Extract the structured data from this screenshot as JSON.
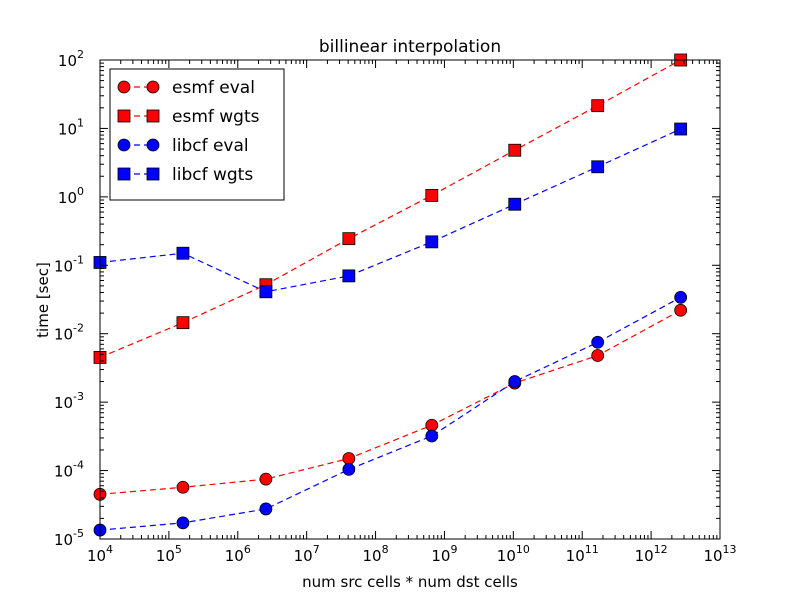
{
  "chart_data": {
    "type": "scatter",
    "title": "billinear interpolation",
    "xlabel": "num src cells * num dst cells",
    "ylabel": "time [sec]",
    "xscale": "log",
    "yscale": "log",
    "xlim": [
      10000,
      10000000000000
    ],
    "ylim": [
      1e-05,
      100
    ],
    "grid": false,
    "legend_position": "upper-left",
    "x_tick_exponents": [
      "4",
      "5",
      "6",
      "7",
      "8",
      "9",
      "10",
      "11",
      "12",
      "13"
    ],
    "y_tick_exponents": [
      "-5",
      "-4",
      "-3",
      "-2",
      "-1",
      "0",
      "1",
      "2"
    ],
    "tick_base": "10",
    "x": [
      10000,
      160000,
      2560000,
      40960000,
      655360000,
      10485760000,
      167772160000,
      2684354560000
    ],
    "series": [
      {
        "name": "esmf eval",
        "color": "#ff0000",
        "marker": "circle",
        "values": [
          4.5e-05,
          5.7e-05,
          7.5e-05,
          0.00015,
          0.00046,
          0.0019,
          0.0048,
          0.022
        ]
      },
      {
        "name": "esmf wgts",
        "color": "#ff0000",
        "marker": "square",
        "values": [
          0.0045,
          0.0145,
          0.052,
          0.245,
          1.05,
          4.8,
          21.5,
          100
        ]
      },
      {
        "name": "libcf eval",
        "color": "#0000ff",
        "marker": "circle",
        "values": [
          1.35e-05,
          1.72e-05,
          2.75e-05,
          0.000104,
          0.00032,
          0.002,
          0.0075,
          0.034
        ]
      },
      {
        "name": "libcf wgts",
        "color": "#0000ff",
        "marker": "square",
        "values": [
          0.11,
          0.15,
          0.041,
          0.07,
          0.22,
          0.78,
          2.75,
          9.8
        ]
      }
    ]
  }
}
